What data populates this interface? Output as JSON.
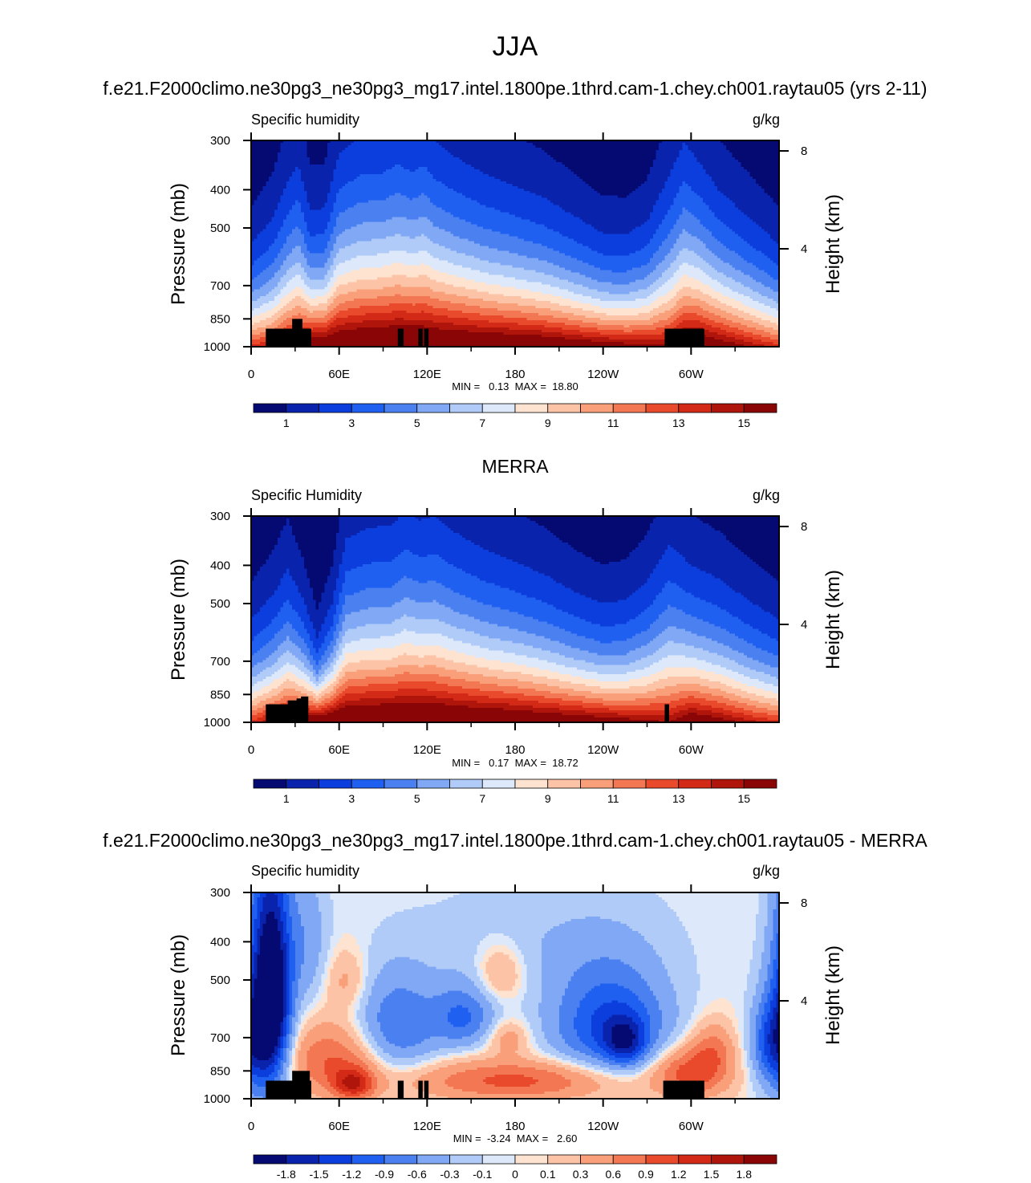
{
  "figure": {
    "season_title": "JJA",
    "background": "#ffffff",
    "land_mask_color": "#000000"
  },
  "chart_data": [
    {
      "type": "heatmap",
      "title": "f.e21.F2000climo.ne30pg3_ne30pg3_mg17.intel.1800pe.1thrd.cam-1.chey.ch001.raytau05 (yrs 2-11)",
      "variable_label": "Specific humidity",
      "units": "g/kg",
      "ylabel": "Pressure (mb)",
      "y2label": "Height (km)",
      "xlabel": "",
      "x_ticks": [
        "0",
        "60E",
        "120E",
        "180",
        "120W",
        "60W"
      ],
      "x_range_deg": [
        0,
        360
      ],
      "y_ticks": [
        "300",
        "400",
        "500",
        "700",
        "850",
        "1000"
      ],
      "y_range_mb": [
        300,
        1000
      ],
      "y2_ticks": [
        "8",
        "4"
      ],
      "stats": "MIN =   0.13  MAX =  18.80",
      "min": 0.13,
      "max": 18.8,
      "colorbar_levels": [
        0,
        1,
        2,
        3,
        4,
        5,
        6,
        7,
        8,
        9,
        10,
        11,
        12,
        13,
        14,
        15,
        16
      ],
      "colorbar_labels": [
        "1",
        "3",
        "5",
        "7",
        "9",
        "11",
        "13",
        "15"
      ],
      "colorbar_colors": [
        "#050a73",
        "#0a23ac",
        "#0b3edc",
        "#2060f0",
        "#4a80ef",
        "#80a8f5",
        "#b0cbf7",
        "#dde9fb",
        "#fde3d0",
        "#fcc3a6",
        "#f9a07b",
        "#f47754",
        "#ea4a2c",
        "#d22a16",
        "#b0150b",
        "#8a0606"
      ],
      "profile": {
        "lon": [
          0,
          15,
          25,
          32,
          40,
          50,
          60,
          75,
          90,
          100,
          110,
          118,
          125,
          140,
          160,
          180,
          200,
          220,
          240,
          255,
          270,
          285,
          295,
          305,
          320,
          340,
          360
        ],
        "scale_height_km": [
          2.2,
          2.7,
          3.3,
          3.6,
          2.6,
          2.6,
          3.6,
          3.9,
          3.9,
          4.1,
          3.9,
          4.1,
          3.8,
          3.5,
          3.2,
          3.0,
          2.8,
          2.5,
          2.2,
          2.2,
          2.5,
          3.4,
          3.9,
          3.5,
          3.0,
          2.6,
          2.2
        ],
        "surface_q_gkg": [
          13.5,
          14.2,
          15.5,
          16.0,
          17.2,
          17.5,
          18.0,
          18.2,
          18.5,
          18.5,
          18.6,
          18.4,
          18.3,
          18.2,
          18.0,
          17.8,
          17.5,
          17.0,
          16.5,
          16.0,
          15.5,
          15.5,
          17.0,
          17.5,
          16.5,
          15.0,
          13.5
        ]
      },
      "land_blocks": [
        {
          "lon": [
            10,
            41
          ],
          "p_top_mb": 900
        },
        {
          "lon": [
            28,
            35
          ],
          "p_top_mb": 850
        },
        {
          "lon": [
            100,
            104
          ],
          "p_top_mb": 900
        },
        {
          "lon": [
            114,
            117
          ],
          "p_top_mb": 900
        },
        {
          "lon": [
            118,
            121
          ],
          "p_top_mb": 900
        },
        {
          "lon": [
            282,
            309
          ],
          "p_top_mb": 900
        }
      ]
    },
    {
      "type": "heatmap",
      "title": "MERRA",
      "variable_label": "Specific Humidity",
      "units": "g/kg",
      "ylabel": "Pressure (mb)",
      "y2label": "Height (km)",
      "xlabel": "",
      "x_ticks": [
        "0",
        "60E",
        "120E",
        "180",
        "120W",
        "60W"
      ],
      "x_range_deg": [
        0,
        360
      ],
      "y_ticks": [
        "300",
        "400",
        "500",
        "700",
        "850",
        "1000"
      ],
      "y_range_mb": [
        300,
        1000
      ],
      "y2_ticks": [
        "8",
        "4"
      ],
      "stats": "MIN =   0.17  MAX =  18.72",
      "min": 0.17,
      "max": 18.72,
      "colorbar_levels": [
        0,
        1,
        2,
        3,
        4,
        5,
        6,
        7,
        8,
        9,
        10,
        11,
        12,
        13,
        14,
        15,
        16
      ],
      "colorbar_labels": [
        "1",
        "3",
        "5",
        "7",
        "9",
        "11",
        "13",
        "15"
      ],
      "colorbar_colors": [
        "#050a73",
        "#0a23ac",
        "#0b3edc",
        "#2060f0",
        "#4a80ef",
        "#80a8f5",
        "#b0cbf7",
        "#dde9fb",
        "#fde3d0",
        "#fcc3a6",
        "#f9a07b",
        "#f47754",
        "#ea4a2c",
        "#d22a16",
        "#b0150b",
        "#8a0606"
      ],
      "profile": {
        "lon": [
          0,
          15,
          25,
          35,
          45,
          55,
          65,
          80,
          95,
          105,
          115,
          125,
          140,
          160,
          180,
          200,
          220,
          240,
          255,
          270,
          285,
          300,
          320,
          340,
          360
        ],
        "scale_height_km": [
          2.2,
          2.6,
          3.0,
          2.4,
          1.6,
          2.2,
          3.4,
          3.6,
          3.6,
          3.9,
          3.7,
          3.8,
          3.5,
          3.2,
          3.0,
          2.8,
          2.5,
          2.3,
          2.4,
          2.8,
          3.6,
          3.0,
          2.8,
          2.5,
          2.2
        ],
        "surface_q_gkg": [
          13.5,
          15.0,
          16.0,
          16.5,
          17.5,
          18.0,
          18.2,
          18.3,
          18.5,
          18.5,
          18.6,
          18.4,
          18.2,
          18.0,
          17.8,
          17.3,
          17.0,
          16.5,
          16.0,
          15.5,
          15.0,
          17.0,
          16.0,
          14.5,
          13.5
        ]
      },
      "land_blocks": [
        {
          "lon": [
            10,
            38
          ],
          "p_top_mb": 900
        },
        {
          "lon": [
            25,
            32
          ],
          "p_top_mb": 880
        },
        {
          "lon": [
            31,
            38
          ],
          "p_top_mb": 870
        },
        {
          "lon": [
            34,
            39
          ],
          "p_top_mb": 860
        },
        {
          "lon": [
            282,
            285
          ],
          "p_top_mb": 900
        },
        {
          "lon": [
            283,
            290
          ],
          "p_top_mb": 995
        }
      ]
    },
    {
      "type": "heatmap",
      "title": "f.e21.F2000climo.ne30pg3_ne30pg3_mg17.intel.1800pe.1thrd.cam-1.chey.ch001.raytau05 - MERRA",
      "variable_label": "Specific humidity",
      "units": "g/kg",
      "ylabel": "Pressure (mb)",
      "y2label": "Height (km)",
      "xlabel": "",
      "x_ticks": [
        "0",
        "60E",
        "120E",
        "180",
        "120W",
        "60W"
      ],
      "x_range_deg": [
        0,
        360
      ],
      "y_ticks": [
        "300",
        "400",
        "500",
        "700",
        "850",
        "1000"
      ],
      "y_range_mb": [
        300,
        1000
      ],
      "y2_ticks": [
        "8",
        "4"
      ],
      "stats": "MIN =  -3.24  MAX =   2.60",
      "min": -3.24,
      "max": 2.6,
      "colorbar_levels": [
        -2.1,
        -1.8,
        -1.5,
        -1.2,
        -0.9,
        -0.6,
        -0.3,
        -0.1,
        0,
        0.1,
        0.3,
        0.6,
        0.9,
        1.2,
        1.5,
        1.8,
        2.1
      ],
      "colorbar_labels": [
        "-1.8",
        "-1.5",
        "-1.2",
        "-0.9",
        "-0.6",
        "-0.3",
        "-0.1",
        "0",
        "0.1",
        "0.3",
        "0.6",
        "0.9",
        "1.2",
        "1.5",
        "1.8"
      ],
      "colorbar_colors": [
        "#050a73",
        "#0a23ac",
        "#0b3edc",
        "#2060f0",
        "#4a80ef",
        "#80a8f5",
        "#b0cbf7",
        "#dde9fb",
        "#fde3d0",
        "#fcc3a6",
        "#f9a07b",
        "#f47754",
        "#ea4a2c",
        "#d22a16",
        "#b0150b",
        "#8a0606"
      ],
      "features": [
        {
          "lon": 15,
          "p_mb": 550,
          "dlon": 9,
          "dp": 230,
          "amp": -2.2
        },
        {
          "lon": 5,
          "p_mb": 600,
          "dlon": 10,
          "dp": 300,
          "amp": -0.8
        },
        {
          "lon": 38,
          "p_mb": 400,
          "dlon": 10,
          "dp": 120,
          "amp": -0.5
        },
        {
          "lon": 55,
          "p_mb": 800,
          "dlon": 22,
          "dp": 120,
          "amp": 0.9
        },
        {
          "lon": 70,
          "p_mb": 920,
          "dlon": 10,
          "dp": 60,
          "amp": 1.2
        },
        {
          "lon": 65,
          "p_mb": 500,
          "dlon": 10,
          "dp": 60,
          "amp": 0.4
        },
        {
          "lon": 100,
          "p_mb": 650,
          "dlon": 20,
          "dp": 130,
          "amp": -0.9
        },
        {
          "lon": 145,
          "p_mb": 620,
          "dlon": 15,
          "dp": 80,
          "amp": -0.9
        },
        {
          "lon": 180,
          "p_mb": 900,
          "dlon": 50,
          "dp": 75,
          "amp": 1.0
        },
        {
          "lon": 175,
          "p_mb": 700,
          "dlon": 10,
          "dp": 50,
          "amp": 0.5
        },
        {
          "lon": 170,
          "p_mb": 480,
          "dlon": 12,
          "dp": 60,
          "amp": 0.5
        },
        {
          "lon": 245,
          "p_mb": 650,
          "dlon": 28,
          "dp": 140,
          "amp": -1.3
        },
        {
          "lon": 255,
          "p_mb": 720,
          "dlon": 10,
          "dp": 70,
          "amp": -1.0
        },
        {
          "lon": 300,
          "p_mb": 860,
          "dlon": 18,
          "dp": 90,
          "amp": 1.1
        },
        {
          "lon": 315,
          "p_mb": 740,
          "dlon": 10,
          "dp": 80,
          "amp": 0.6
        },
        {
          "lon": 355,
          "p_mb": 720,
          "dlon": 10,
          "dp": 130,
          "amp": -1.1
        },
        {
          "lon": 200,
          "p_mb": 400,
          "dlon": 60,
          "dp": 100,
          "amp": -0.25
        }
      ],
      "land_blocks": [
        {
          "lon": [
            10,
            41
          ],
          "p_top_mb": 900
        },
        {
          "lon": [
            28,
            40
          ],
          "p_top_mb": 850
        },
        {
          "lon": [
            100,
            104
          ],
          "p_top_mb": 900
        },
        {
          "lon": [
            114,
            117
          ],
          "p_top_mb": 900
        },
        {
          "lon": [
            118,
            121
          ],
          "p_top_mb": 900
        },
        {
          "lon": [
            281,
            309
          ],
          "p_top_mb": 900
        }
      ]
    }
  ]
}
